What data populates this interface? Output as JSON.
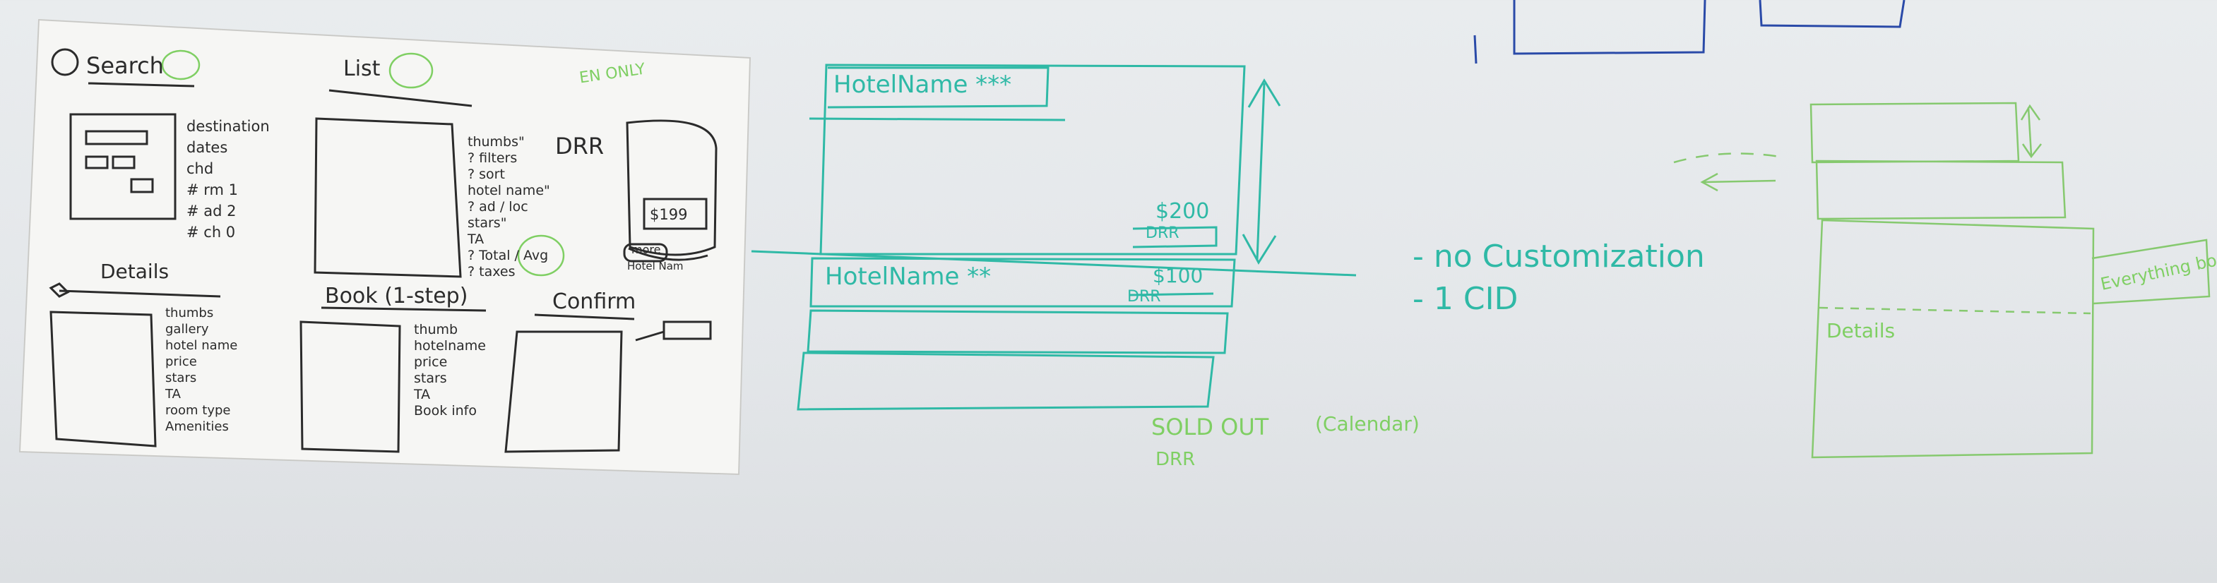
{
  "paper": {
    "search": {
      "title": "Search",
      "lines": [
        "destination",
        "dates",
        "chd",
        "# rm 1",
        "# ad 2",
        "# ch 0"
      ]
    },
    "list": {
      "title": "List",
      "lines": [
        "thumbs\"",
        "? filters",
        "? sort",
        "hotel name\"",
        "? ad / loc",
        "stars\"",
        "TA",
        "? Total / Avg",
        "? taxes"
      ],
      "drr": "DRR"
    },
    "en_only": "EN ONLY",
    "map_price": "$199",
    "map_more": "more",
    "map_hotelname": "Hotel Nam",
    "details": {
      "title": "Details",
      "lines": [
        "thumbs",
        "gallery",
        "hotel name",
        "price",
        "stars",
        "TA",
        "room type",
        "Amenities"
      ]
    },
    "book": {
      "title": "Book (1-step)",
      "lines": [
        "thumb",
        "hotelname",
        "price",
        "stars",
        "TA",
        "Book info"
      ]
    },
    "confirm": {
      "title": "Confirm"
    }
  },
  "whiteboard": {
    "list_item_1": {
      "name": "HotelName ***",
      "price": "$200",
      "drr": "DRR"
    },
    "list_item_2": {
      "name": "HotelName **",
      "price": "$100",
      "drr": "DRR"
    },
    "note_1": "- no Customization",
    "note_2": "- 1 CID",
    "sold_out": "SOLD OUT",
    "sold_out_note": "(Calendar)",
    "sold_out_drr": "DRR",
    "details_label": "Details",
    "everything_label": "Everything bogus?"
  },
  "colors": {
    "teal": "#2fb9a6",
    "green": "#7fcf63",
    "ink": "#2b2b2b",
    "blue": "#2a4aa8"
  }
}
